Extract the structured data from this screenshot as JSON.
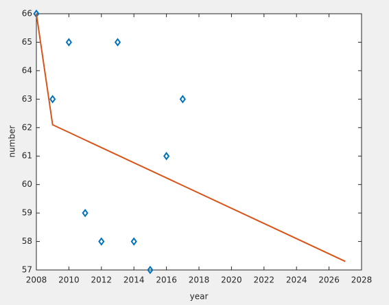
{
  "chart_data": {
    "type": "scatter",
    "xlabel": "year",
    "ylabel": "number",
    "xlim": [
      2008,
      2028
    ],
    "xticks": [
      2008,
      2010,
      2012,
      2014,
      2016,
      2018,
      2020,
      2022,
      2024,
      2026,
      2028
    ],
    "ylim": [
      57,
      66
    ],
    "yticks": [
      57,
      58,
      59,
      60,
      61,
      62,
      63,
      64,
      65,
      66
    ],
    "series": [
      {
        "type": "scatter",
        "color": "#0072bd",
        "x": [
          2008,
          2009,
          2010,
          2011,
          2012,
          2013,
          2014,
          2015,
          2016,
          2017
        ],
        "values": [
          66,
          63,
          65,
          59,
          58,
          65,
          58,
          57,
          61,
          63
        ]
      },
      {
        "type": "line",
        "color": "#d95319",
        "x": [
          2008,
          2009,
          2027
        ],
        "values": [
          66,
          62.1,
          57.3
        ]
      }
    ]
  }
}
